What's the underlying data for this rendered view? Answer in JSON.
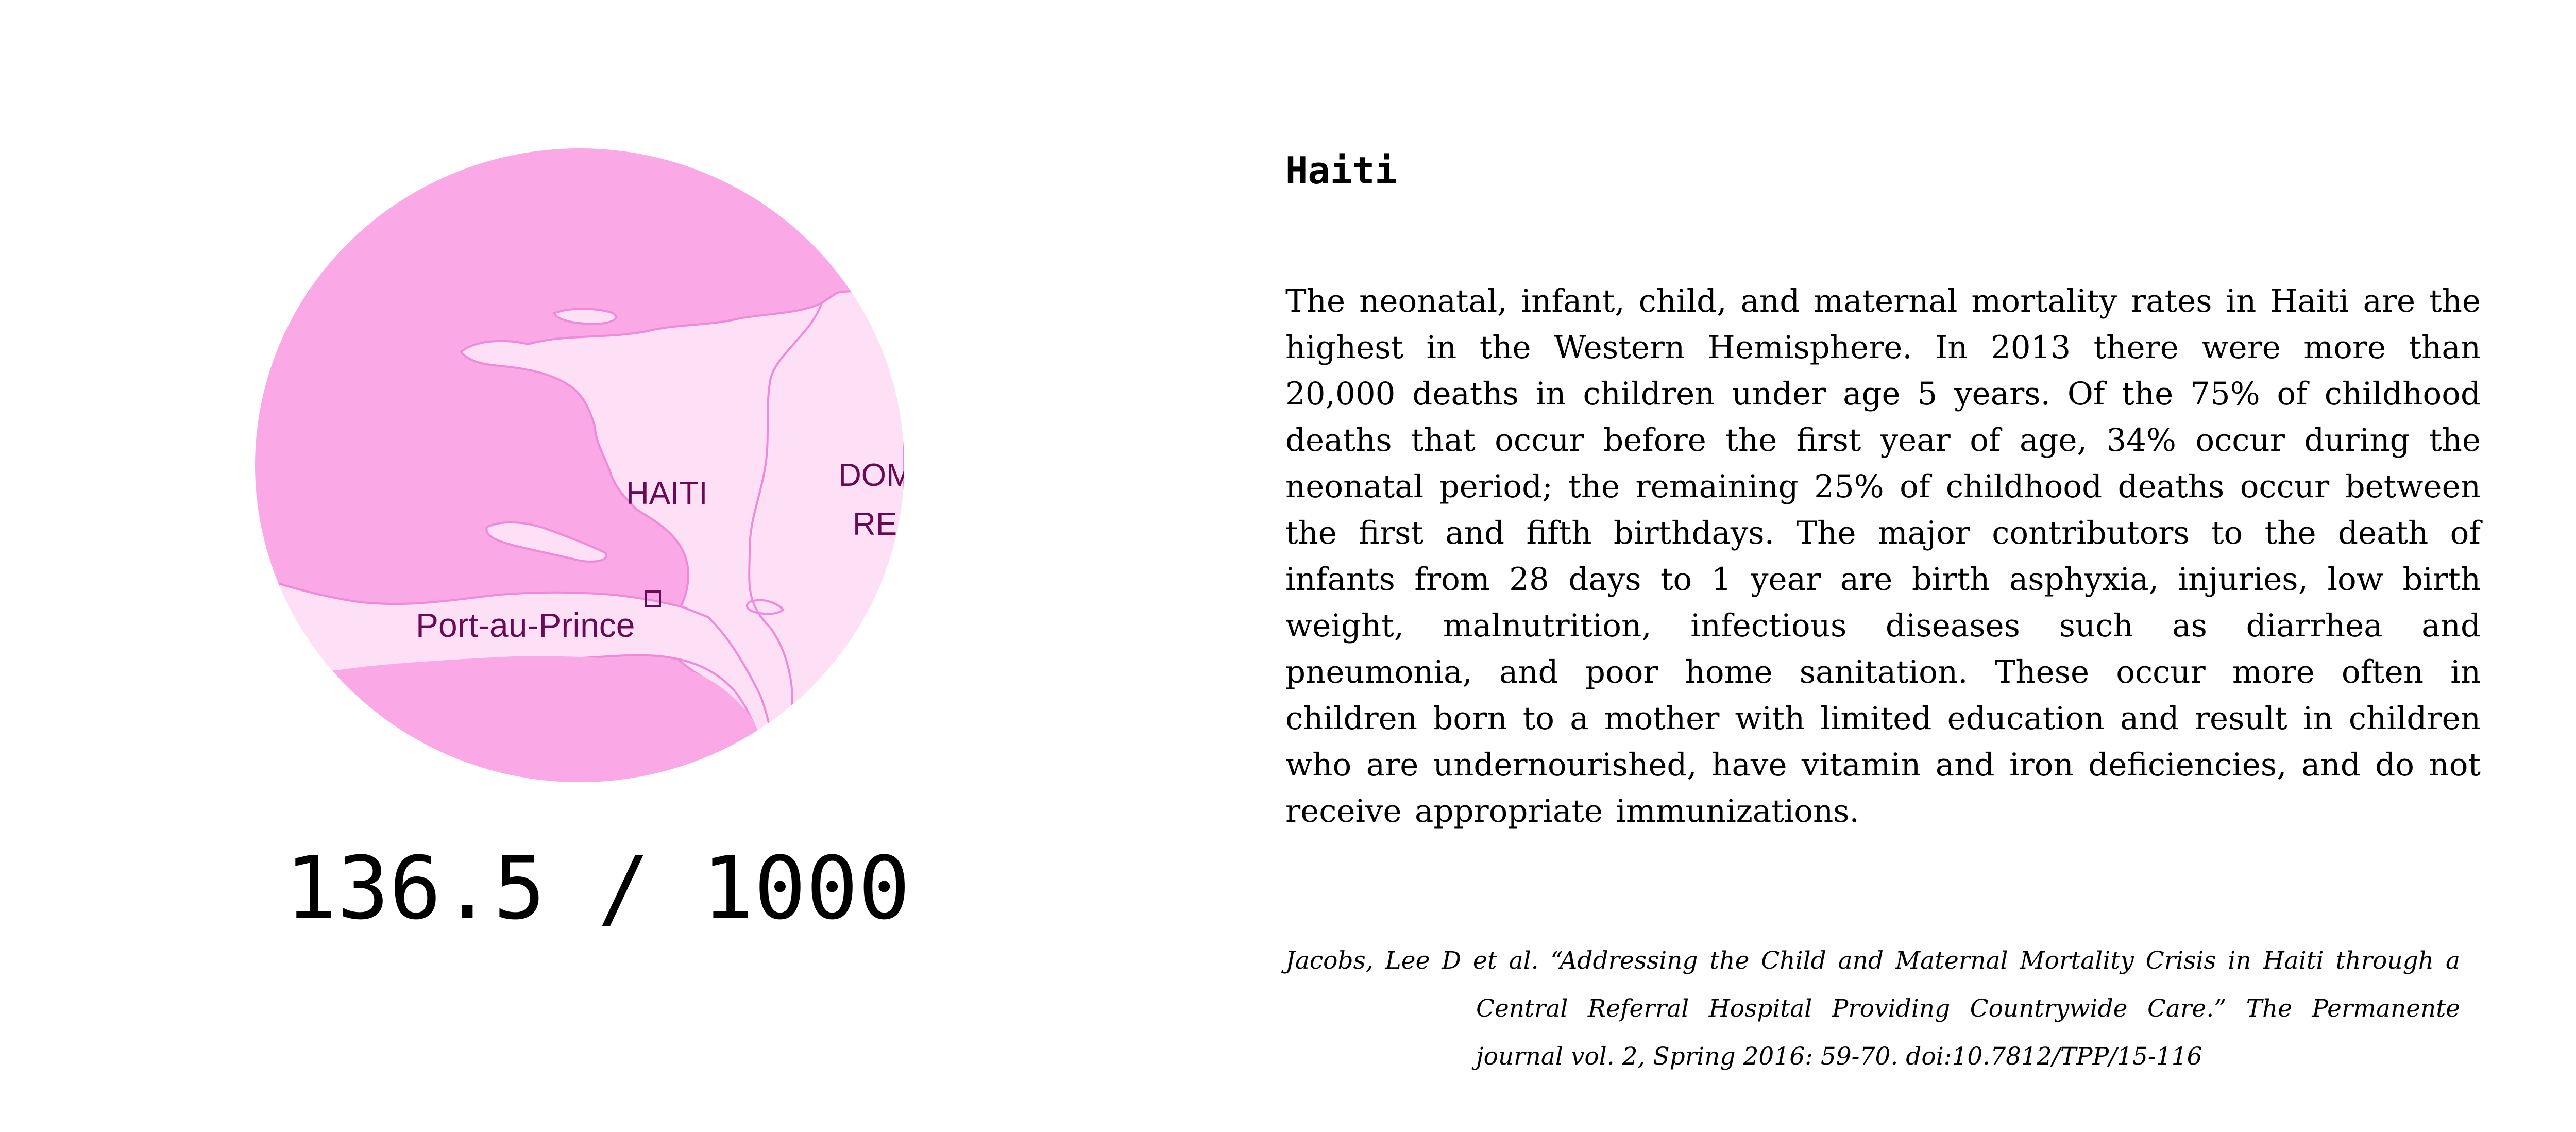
{
  "map": {
    "country_label": "HAITI",
    "capital_label": "Port-au-Prince",
    "neighbor_label_line1": "DOM",
    "neighbor_label_line2": "RE",
    "colors": {
      "water": "#fba8e6",
      "land": "#fde0f6",
      "border": "#f08ad6",
      "label": "#6a0a55"
    }
  },
  "stat": {
    "rate_text": "136.5 / 1000"
  },
  "article": {
    "title": "Haiti",
    "body": "The neonatal, infant, child, and maternal mortality rates in Haiti are the highest in the Western Hemisphere. In 2013 there were more than 20,000 deaths in children under age 5 years. Of the 75% of childhood deaths that occur before the first year of age, 34% occur during the neonatal period; the remaining 25% of childhood deaths occur between the first and fifth birthdays. The major contributors to the death of infants from 28 days to 1 year are birth asphyxia, injuries, low birth weight, malnutrition, infectious diseases such as diarrhea and pneumonia, and poor home sanitation. These occur more often in children born to a mother with limited education and result in children who are undernourished, have vitamin and iron deficiencies, and do not receive appropriate immunizations.",
    "citation": "Jacobs, Lee D et al. “Addressing the Child and Maternal Mortality Crisis in Haiti through a Central Referral Hospital Providing Countrywide Care.” The Permanente journal vol. 2, Spring 2016: 59-70. doi:10.7812/TPP/15-116"
  }
}
